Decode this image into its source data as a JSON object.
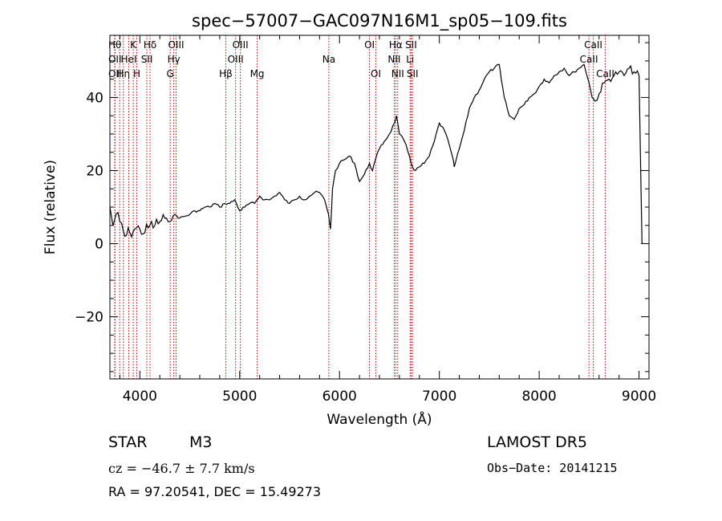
{
  "chart_data": {
    "type": "line",
    "title": "spec−57007−GAC097N16M1_sp05−109.fits",
    "xlabel": "Wavelength (Å)",
    "ylabel": "Flux (relative)",
    "xlim": [
      3700,
      9100
    ],
    "ylim": [
      -37,
      57
    ],
    "xticks": [
      {
        "value": 4000,
        "label": "4000"
      },
      {
        "value": 5000,
        "label": "5000"
      },
      {
        "value": 6000,
        "label": "6000"
      },
      {
        "value": 7000,
        "label": "7000"
      },
      {
        "value": 8000,
        "label": "8000"
      },
      {
        "value": 9000,
        "label": "9000"
      }
    ],
    "yticks": [
      {
        "value": -20,
        "label": "−20"
      },
      {
        "value": 0,
        "label": "0"
      },
      {
        "value": 20,
        "label": "20"
      },
      {
        "value": 40,
        "label": "40"
      }
    ],
    "grid": false,
    "line_color": "#000000",
    "marker_line_color": "#c00000",
    "series": [
      {
        "x": [
          3700,
          3730,
          3760,
          3800,
          3850,
          3900,
          3950,
          4000,
          4050,
          4100,
          4150,
          4200,
          4250,
          4300,
          4350,
          4400,
          4450,
          4500,
          4550,
          4600,
          4650,
          4700,
          4750,
          4800,
          4850,
          4900,
          4950,
          5000,
          5050,
          5100,
          5150,
          5200,
          5250,
          5300,
          5350,
          5400,
          5450,
          5500,
          5550,
          5600,
          5650,
          5700,
          5750,
          5800,
          5850,
          5890,
          5910,
          5930,
          5960,
          6000,
          6050,
          6100,
          6150,
          6200,
          6250,
          6300,
          6330,
          6360,
          6400,
          6450,
          6500,
          6550,
          6570,
          6600,
          6650,
          6700,
          6730,
          6760,
          6800,
          6850,
          6900,
          6950,
          7000,
          7050,
          7100,
          7130,
          7150,
          7200,
          7250,
          7300,
          7350,
          7400,
          7450,
          7500,
          7550,
          7600,
          7620,
          7650,
          7700,
          7750,
          7800,
          7850,
          7900,
          7950,
          8000,
          8050,
          8100,
          8150,
          8200,
          8250,
          8300,
          8350,
          8400,
          8450,
          8500,
          8530,
          8560,
          8600,
          8650,
          8700,
          8750,
          8800,
          8850,
          8900,
          8950,
          9000,
          9030
        ],
        "y": [
          10,
          5,
          8,
          6,
          2,
          3,
          4,
          4,
          3,
          5,
          5,
          6,
          7,
          6,
          8,
          7,
          7.5,
          8,
          9,
          9,
          10,
          10,
          11,
          10,
          11,
          11,
          12,
          9,
          10,
          11,
          11,
          13,
          12,
          12,
          13,
          14,
          12,
          11,
          12,
          13,
          12,
          13,
          14,
          14,
          12,
          8,
          4,
          15,
          20,
          22,
          23,
          24,
          22,
          17,
          19,
          22,
          20,
          23,
          26,
          28,
          30,
          33,
          35,
          30,
          28,
          24,
          21,
          20,
          21,
          22,
          24,
          28,
          33,
          31,
          27,
          24,
          21,
          26,
          31,
          37,
          40,
          42,
          45,
          47,
          48,
          49,
          45,
          40,
          35,
          34,
          37,
          38,
          40,
          41,
          43,
          45,
          44,
          46,
          47,
          48,
          46,
          47,
          48,
          49,
          44,
          40,
          39,
          41,
          44,
          45,
          46,
          47,
          46,
          48,
          47,
          46,
          0
        ]
      }
    ],
    "line_markers": [
      {
        "wavelength": 3750,
        "label": "Hθ",
        "row": 1
      },
      {
        "wavelength": 3750,
        "label": "OII",
        "row": 2
      },
      {
        "wavelength": 3750,
        "label": "OII",
        "row": 3
      },
      {
        "wavelength": 3798,
        "label": "",
        "row": 0
      },
      {
        "wavelength": 3835,
        "label": "Hη",
        "row": 3
      },
      {
        "wavelength": 3889,
        "label": "HeI",
        "row": 2
      },
      {
        "wavelength": 3934,
        "label": "K",
        "row": 1
      },
      {
        "wavelength": 3969,
        "label": "H",
        "row": 3
      },
      {
        "wavelength": 4070,
        "label": "SII",
        "row": 2
      },
      {
        "wavelength": 4102,
        "label": "Hδ",
        "row": 1
      },
      {
        "wavelength": 4304,
        "label": "G",
        "row": 3
      },
      {
        "wavelength": 4340,
        "label": "Hγ",
        "row": 2
      },
      {
        "wavelength": 4363,
        "label": "OIII",
        "row": 1
      },
      {
        "wavelength": 4861,
        "label": "Hβ",
        "row": 3
      },
      {
        "wavelength": 4959,
        "label": "OIII",
        "row": 2
      },
      {
        "wavelength": 5007,
        "label": "OIII",
        "row": 1
      },
      {
        "wavelength": 5175,
        "label": "Mg",
        "row": 3
      },
      {
        "wavelength": 5893,
        "label": "Na",
        "row": 2
      },
      {
        "wavelength": 6300,
        "label": "OI",
        "row": 1
      },
      {
        "wavelength": 6364,
        "label": "OI",
        "row": 3
      },
      {
        "wavelength": 6548,
        "label": "NII",
        "row": 2
      },
      {
        "wavelength": 6563,
        "label": "Hα",
        "row": 1
      },
      {
        "wavelength": 6583,
        "label": "NII",
        "row": 3
      },
      {
        "wavelength": 6707,
        "label": "Li",
        "row": 2
      },
      {
        "wavelength": 6717,
        "label": "SII",
        "row": 1
      },
      {
        "wavelength": 6731,
        "label": "SII",
        "row": 3
      },
      {
        "wavelength": 8498,
        "label": "CaII",
        "row": 2
      },
      {
        "wavelength": 8542,
        "label": "CaII",
        "row": 1
      },
      {
        "wavelength": 8662,
        "label": "CaII",
        "row": 3
      }
    ]
  },
  "info": {
    "class_label": "STAR",
    "subclass_label": "M3",
    "survey_label": "LAMOST DR5",
    "cz_label": "cz = −46.7 ± 7.7 km/s",
    "obs_date_label": "Obs−Date: 20141215",
    "radec_label": "RA =  97.20541, DEC =  15.49273"
  }
}
